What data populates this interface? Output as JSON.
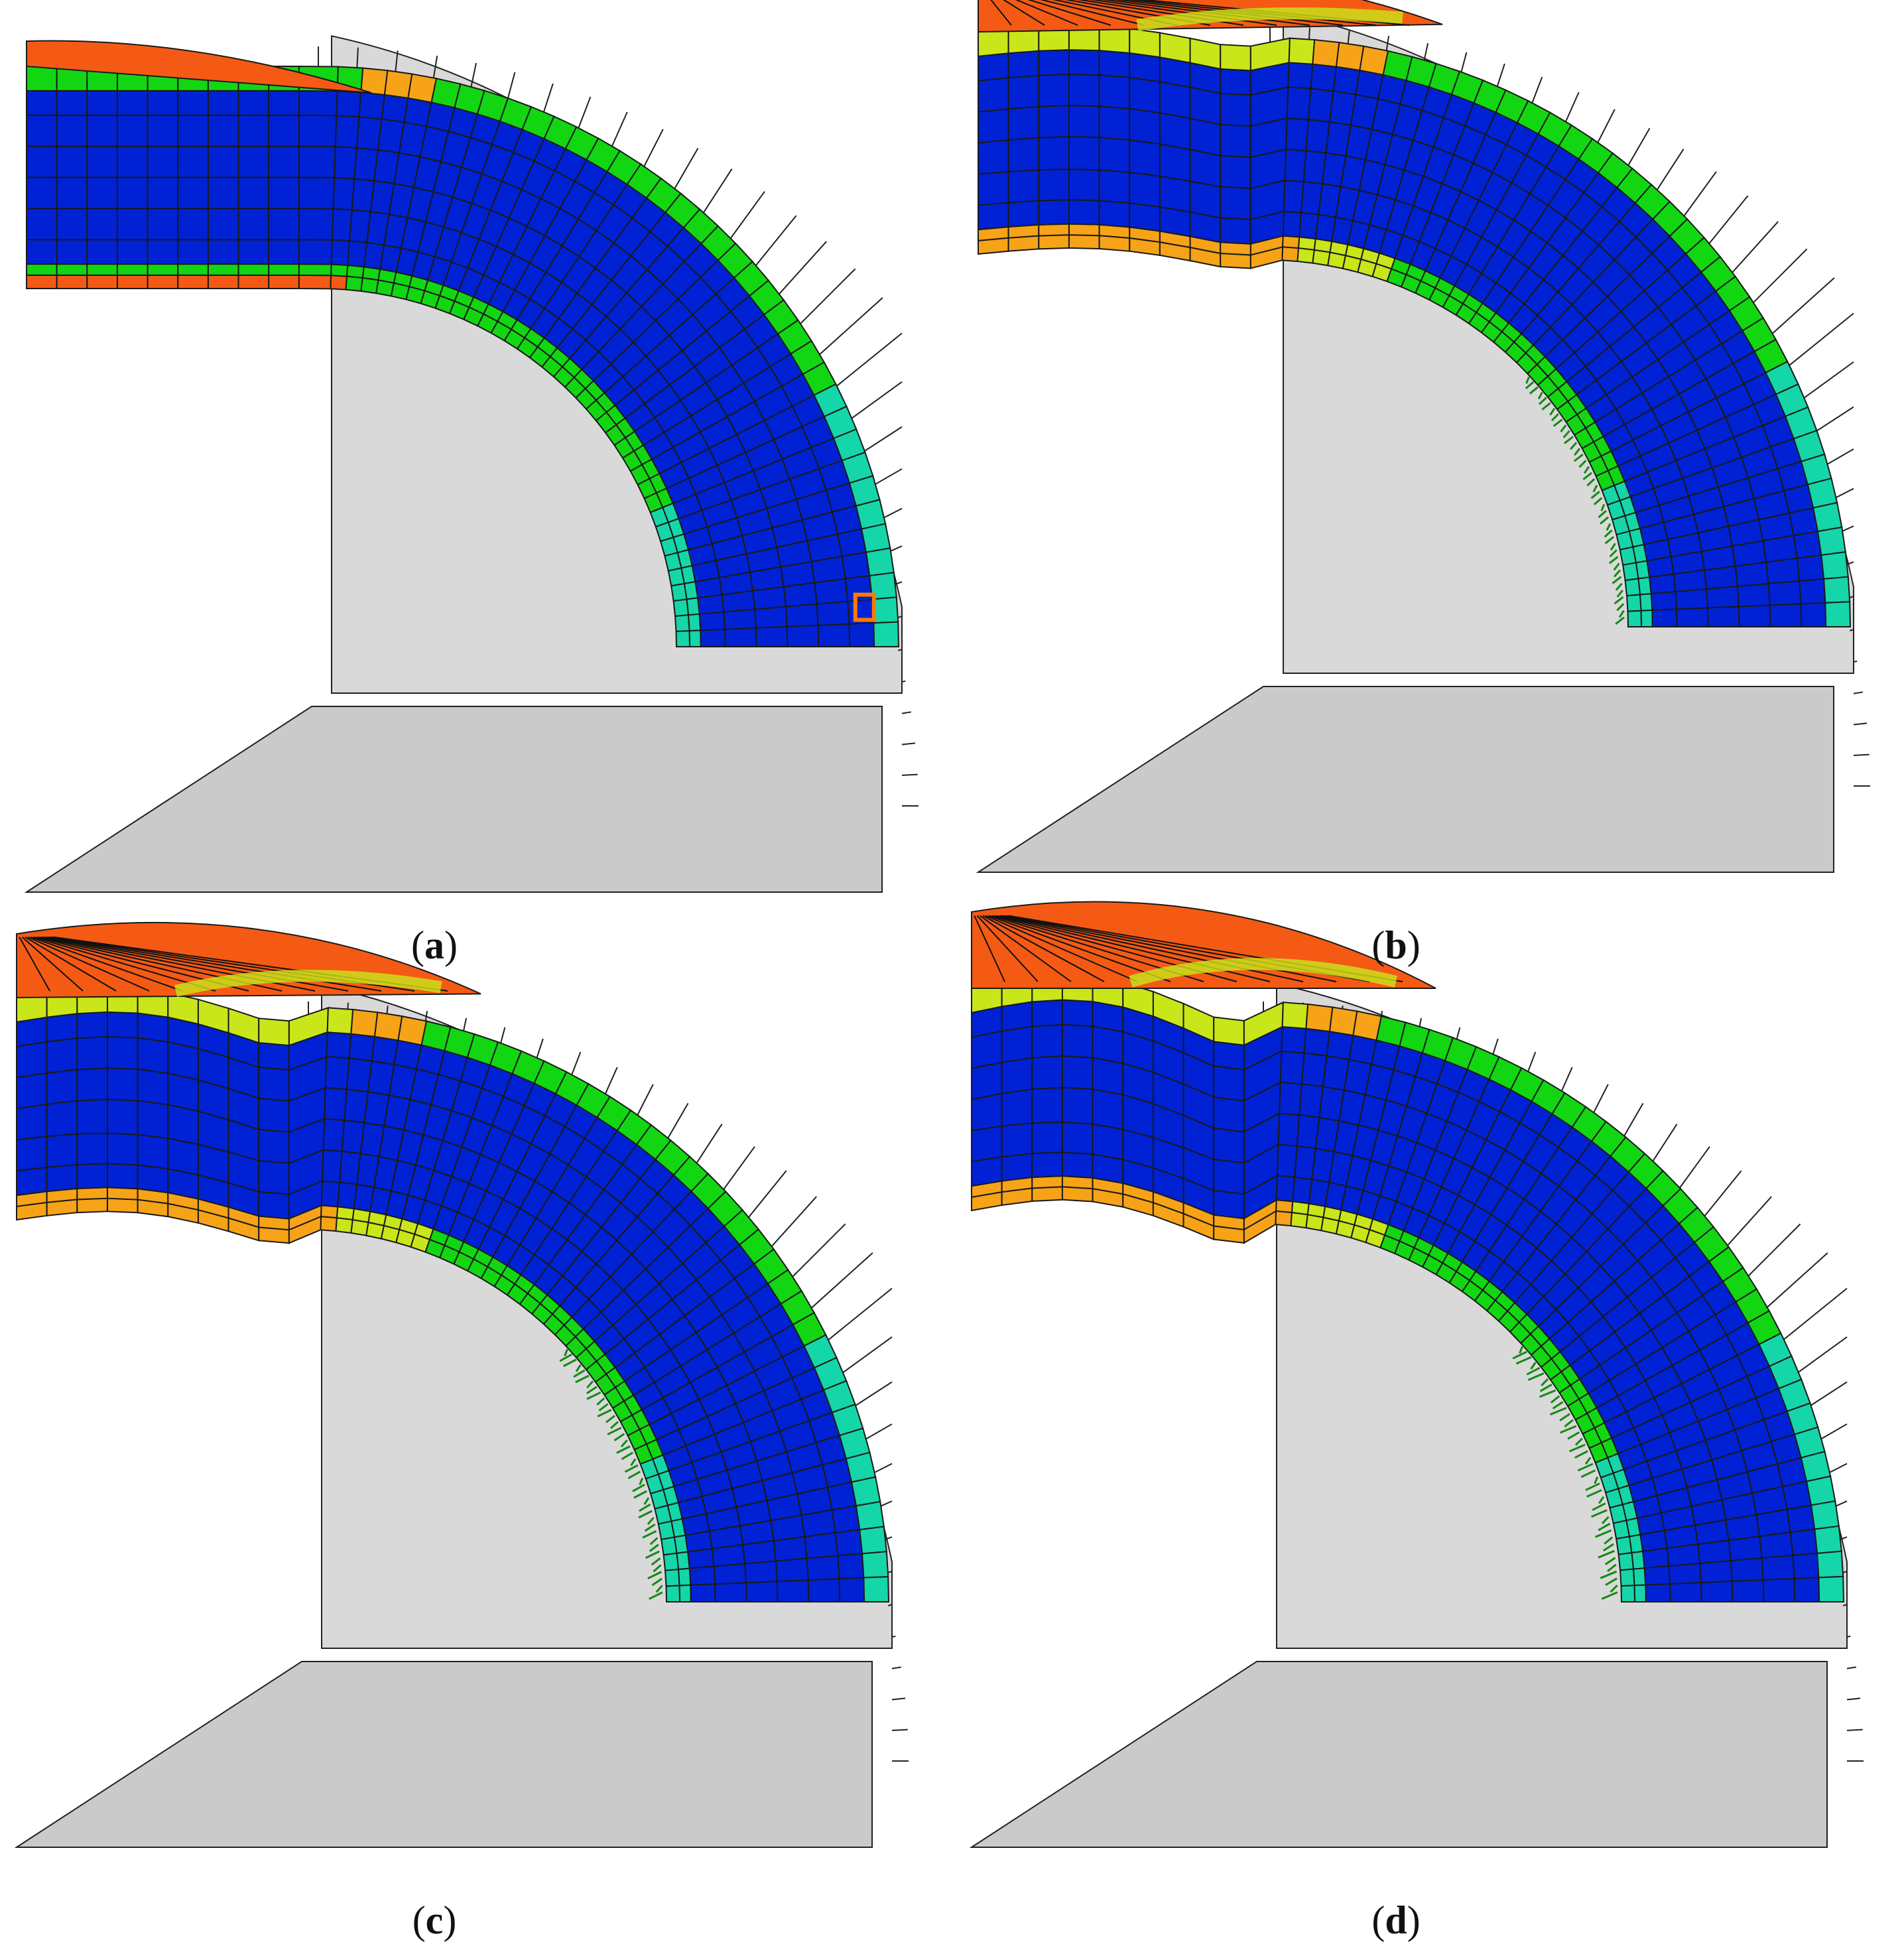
{
  "figure": {
    "panels": [
      {
        "label": "a",
        "caption_open": "(",
        "caption_close": ")",
        "bulge": 0.04,
        "wrinkle": 0.0,
        "wrinkle_outer": 0.0,
        "lift": 0.0,
        "fan_height": 0.02,
        "crumple": 0.0,
        "shows_marker": true
      },
      {
        "label": "b",
        "caption_open": "(",
        "caption_close": ")",
        "bulge": 0.22,
        "wrinkle": 0.08,
        "wrinkle_outer": 0.05,
        "lift": 0.11,
        "fan_height": 0.16,
        "crumple": 0.15,
        "shows_marker": false
      },
      {
        "label": "c",
        "caption_open": "(",
        "caption_close": ")",
        "bulge": 0.3,
        "wrinkle": 0.12,
        "wrinkle_outer": 0.09,
        "lift": 0.18,
        "fan_height": 0.24,
        "crumple": 0.28,
        "shows_marker": false
      },
      {
        "label": "d",
        "caption_open": "(",
        "caption_close": ")",
        "bulge": 0.36,
        "wrinkle": 0.16,
        "wrinkle_outer": 0.12,
        "lift": 0.25,
        "fan_height": 0.3,
        "crumple": 0.34,
        "shows_marker": false
      }
    ],
    "colors": {
      "core": "#0022d4",
      "green": "#12d612",
      "teal": "#15d6a8",
      "cyan": "#1bb0e0",
      "yellow": "#c9e61a",
      "orange": "#f6a318",
      "red_orange": "#f45a14",
      "red": "#e5221a",
      "die_fill": "#d9d9d9",
      "support_fill": "#cacaca",
      "mesh_line": "#1a1a1a",
      "marker": "#ff7a00"
    }
  }
}
